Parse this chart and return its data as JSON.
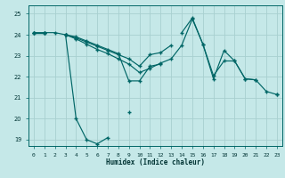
{
  "xlabel": "Humidex (Indice chaleur)",
  "bg_color": "#c5e8e8",
  "grid_color": "#a8d0d0",
  "line_color": "#006666",
  "xlim": [
    -0.5,
    23.5
  ],
  "ylim": [
    18.7,
    25.4
  ],
  "xticks": [
    0,
    1,
    2,
    3,
    4,
    5,
    6,
    7,
    8,
    9,
    10,
    11,
    12,
    13,
    14,
    15,
    16,
    17,
    18,
    19,
    20,
    21,
    22,
    23
  ],
  "yticks": [
    19,
    20,
    21,
    22,
    23,
    24,
    25
  ],
  "line1_y": [
    24.1,
    24.1,
    24.1,
    24.0,
    20.0,
    19.0,
    18.8,
    19.1,
    null,
    20.3,
    null,
    null,
    null,
    null,
    null,
    null,
    null,
    null,
    null,
    null,
    null,
    null,
    null,
    null
  ],
  "line2_y": [
    24.1,
    24.1,
    null,
    24.0,
    23.9,
    23.7,
    23.5,
    23.3,
    23.1,
    21.8,
    21.8,
    22.5,
    22.6,
    null,
    24.1,
    24.8,
    23.55,
    21.9,
    23.25,
    22.75,
    21.9,
    21.85,
    null,
    21.15
  ],
  "line3_y": [
    24.1,
    24.1,
    null,
    24.0,
    23.85,
    23.65,
    23.45,
    23.25,
    23.05,
    22.85,
    22.5,
    23.05,
    23.15,
    23.5,
    null,
    null,
    null,
    null,
    null,
    null,
    null,
    null,
    null,
    null
  ],
  "line4_y": [
    24.1,
    24.1,
    null,
    24.0,
    23.8,
    23.55,
    23.3,
    23.1,
    22.85,
    22.6,
    22.2,
    22.4,
    22.65,
    22.85,
    23.5,
    24.75,
    23.55,
    22.05,
    22.75,
    22.75,
    21.9,
    21.85,
    21.3,
    21.15
  ]
}
